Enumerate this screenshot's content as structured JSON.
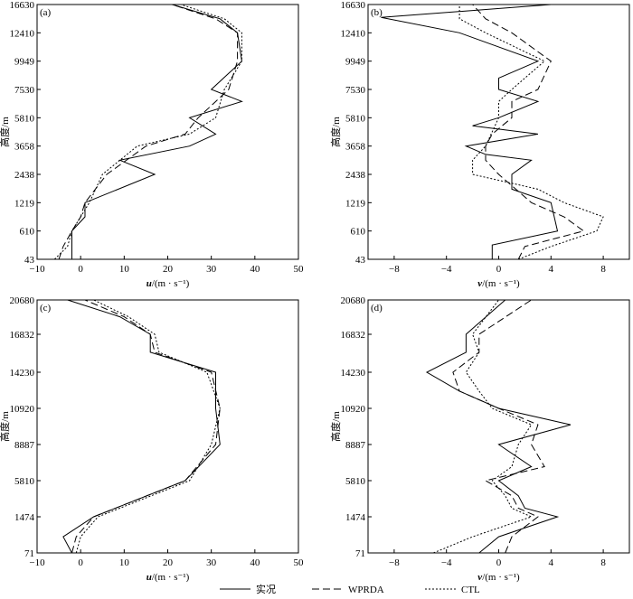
{
  "colors": {
    "axis": "#000000",
    "series": "#000000",
    "background": "#ffffff"
  },
  "legend": {
    "position": "bottom",
    "entries": [
      {
        "label": "实况",
        "dash": "solid"
      },
      {
        "label": "WPRDA",
        "dash": "dashed"
      },
      {
        "label": "CTL",
        "dash": "dotted"
      }
    ]
  },
  "chart_data": [
    {
      "type": "line",
      "panel": "(a)",
      "xlabel_var": "u",
      "xlabel_unit": "/(m · s⁻¹)",
      "ylabel": "高度/m",
      "xlim": [
        -10,
        50
      ],
      "xticks": [
        "−10",
        "0",
        "10",
        "20",
        "30",
        "40",
        "50"
      ],
      "yticks": [
        "43",
        "610",
        "1219",
        "2438",
        "3658",
        "5810",
        "7530",
        "9949",
        "12410",
        "16630"
      ],
      "grid": false,
      "series": [
        {
          "name": "实况",
          "dash": "solid",
          "x": [
            -2,
            -2,
            -2,
            1,
            1,
            17,
            9,
            25,
            31,
            25,
            37,
            30,
            37,
            36,
            32,
            21
          ],
          "y": [
            43,
            300,
            610,
            915,
            1219,
            2438,
            3048,
            3658,
            4572,
            5810,
            6800,
            7530,
            9949,
            12410,
            14500,
            16630
          ]
        },
        {
          "name": "WPRDA",
          "dash": "dashed",
          "x": [
            -5,
            -4,
            -2,
            0,
            1,
            6,
            15,
            24,
            27,
            34,
            36,
            36,
            31,
            21
          ],
          "y": [
            43,
            300,
            610,
            915,
            1219,
            2438,
            3658,
            4572,
            5810,
            7530,
            9949,
            12410,
            14500,
            16630
          ]
        },
        {
          "name": "CTL",
          "dash": "dotted",
          "x": [
            -6,
            -3,
            -2,
            0,
            2,
            5,
            13,
            25,
            31,
            33,
            37,
            37,
            33,
            23
          ],
          "y": [
            43,
            300,
            610,
            915,
            1219,
            2438,
            3658,
            4572,
            5810,
            7530,
            9949,
            12410,
            14500,
            16630
          ]
        }
      ]
    },
    {
      "type": "line",
      "panel": "(b)",
      "xlabel_var": "v",
      "xlabel_unit": "/(m · s⁻¹)",
      "ylabel": "高度/m",
      "xlim": [
        -10,
        10
      ],
      "xticks": [
        "−8",
        "−4",
        "0",
        "4",
        "8"
      ],
      "yticks": [
        "43",
        "610",
        "1219",
        "2438",
        "3658",
        "5810",
        "7530",
        "9949",
        "12410",
        "16630"
      ],
      "grid": false,
      "series": [
        {
          "name": "实况",
          "dash": "solid",
          "x": [
            -0.5,
            -0.5,
            4.5,
            4,
            1,
            1,
            2.5,
            -1,
            -2.5,
            3,
            -2,
            0,
            3,
            0,
            0,
            3,
            -3,
            -9,
            4
          ],
          "y": [
            43,
            330,
            610,
            1219,
            1800,
            2438,
            3048,
            3300,
            3658,
            4572,
            5200,
            5810,
            6800,
            7530,
            8500,
            9949,
            12410,
            14700,
            16630
          ]
        },
        {
          "name": "WPRDA",
          "dash": "dashed",
          "x": [
            1.5,
            2,
            6.5,
            5,
            2.5,
            0,
            -1,
            -1,
            -0.5,
            1,
            1,
            3,
            4,
            1,
            -1,
            -2
          ],
          "y": [
            43,
            300,
            610,
            915,
            1219,
            2438,
            3048,
            3658,
            4572,
            5810,
            6800,
            7530,
            9949,
            12410,
            14500,
            16630
          ]
        },
        {
          "name": "CTL",
          "dash": "dotted",
          "x": [
            1.5,
            4,
            7.5,
            8,
            5,
            3,
            -2,
            -2,
            -1,
            0,
            0,
            1,
            3.5,
            -1,
            -3,
            -3
          ],
          "y": [
            43,
            300,
            610,
            915,
            1219,
            1800,
            2438,
            3048,
            3658,
            5810,
            6800,
            7530,
            9949,
            12410,
            14500,
            16630
          ]
        }
      ]
    },
    {
      "type": "line",
      "panel": "(c)",
      "xlabel_var": "u",
      "xlabel_unit": "/(m · s⁻¹)",
      "ylabel": "高度/m",
      "xlim": [
        -10,
        50
      ],
      "xticks": [
        "−10",
        "0",
        "10",
        "20",
        "30",
        "40",
        "50"
      ],
      "yticks": [
        "71",
        "1474",
        "5810",
        "8887",
        "10920",
        "14230",
        "16832",
        "20680"
      ],
      "grid": false,
      "series": [
        {
          "name": "实况",
          "dash": "solid",
          "x": [
            -2,
            -4,
            3,
            24,
            32,
            31,
            31,
            16,
            16,
            9,
            -3
          ],
          "y": [
            71,
            700,
            1474,
            5810,
            8887,
            10920,
            14230,
            15600,
            16832,
            18800,
            20680
          ]
        },
        {
          "name": "WPRDA",
          "dash": "dashed",
          "x": [
            -2,
            -1,
            3,
            24,
            31,
            32,
            30,
            17,
            16,
            10,
            1
          ],
          "y": [
            71,
            700,
            1474,
            5810,
            8887,
            10920,
            14230,
            15600,
            16832,
            18800,
            20680
          ]
        },
        {
          "name": "CTL",
          "dash": "dotted",
          "x": [
            -1,
            0,
            4,
            25,
            30,
            32,
            29,
            18,
            17,
            11,
            3
          ],
          "y": [
            71,
            700,
            1474,
            5810,
            8887,
            10920,
            14230,
            15600,
            16832,
            18800,
            20680
          ]
        }
      ]
    },
    {
      "type": "line",
      "panel": "(d)",
      "xlabel_var": "v",
      "xlabel_unit": "/(m · s⁻¹)",
      "ylabel": "高度/m",
      "xlim": [
        -10,
        10
      ],
      "xticks": [
        "−8",
        "−4",
        "0",
        "4",
        "8"
      ],
      "yticks": [
        "71",
        "1474",
        "5810",
        "8887",
        "10920",
        "14230",
        "16832",
        "20680"
      ],
      "grid": false,
      "series": [
        {
          "name": "实况",
          "dash": "solid",
          "x": [
            -1.5,
            0,
            4.5,
            2,
            1.5,
            0,
            2.5,
            0,
            5.5,
            0,
            -3,
            -5.5,
            -2.5,
            -2.5,
            0.5
          ],
          "y": [
            71,
            700,
            1474,
            2500,
            4000,
            5810,
            7000,
            8887,
            10000,
            10920,
            12500,
            14230,
            15600,
            16832,
            20680
          ]
        },
        {
          "name": "WPRDA",
          "dash": "dashed",
          "x": [
            0.5,
            1,
            3,
            1.5,
            1,
            -1,
            3.5,
            2.5,
            3,
            0,
            -3,
            -3.5,
            -1.5,
            -1.5,
            2.5
          ],
          "y": [
            71,
            700,
            1474,
            2500,
            4000,
            5810,
            7000,
            8887,
            10000,
            10920,
            12500,
            14230,
            15600,
            16832,
            20680
          ]
        },
        {
          "name": "CTL",
          "dash": "dotted",
          "x": [
            -5,
            -2,
            2.5,
            1,
            0.5,
            -0.5,
            1,
            1.5,
            2.5,
            -0.5,
            -1.5,
            -2.5,
            -1.5,
            -2,
            0
          ],
          "y": [
            71,
            700,
            1474,
            2500,
            4000,
            5810,
            7000,
            8887,
            10000,
            10920,
            12500,
            14230,
            15600,
            16832,
            20680
          ]
        }
      ]
    }
  ]
}
